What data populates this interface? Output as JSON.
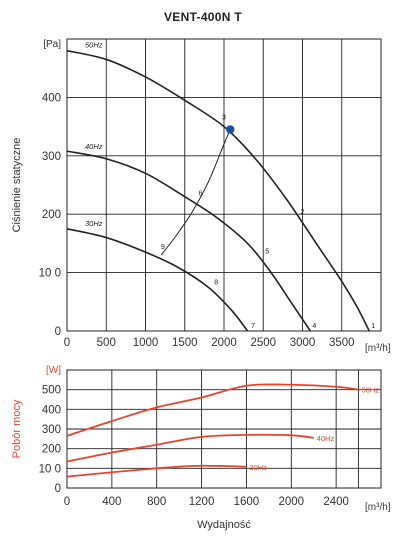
{
  "colors": {
    "pressure_curve": "#222222",
    "power_curve": "#e8442a",
    "operating_point": "#1a4fa0"
  },
  "chart_data": [
    {
      "type": "line",
      "title": "VENT-400N T",
      "ylabel": "Ciśnienie statyczne",
      "yunit": "[Pa]",
      "xunit": "[m³/h]",
      "xlim": [
        0,
        4000
      ],
      "ylim": [
        0,
        500
      ],
      "xticks": [
        "0",
        "500",
        "1000",
        "1500",
        "2000",
        "2500",
        "3000",
        "3500"
      ],
      "yticks": [
        "0",
        "10 0",
        "200",
        "300",
        "400"
      ],
      "grid": true,
      "series": [
        {
          "name": "50Hz",
          "x": [
            0,
            500,
            1000,
            1500,
            2000,
            2400,
            2800,
            3200,
            3500,
            3700,
            3850
          ],
          "y": [
            480,
            465,
            435,
            395,
            350,
            295,
            225,
            145,
            85,
            40,
            0
          ]
        },
        {
          "name": "40Hz",
          "x": [
            0,
            500,
            1000,
            1500,
            1900,
            2300,
            2600,
            2850,
            3100
          ],
          "y": [
            308,
            295,
            270,
            230,
            195,
            150,
            100,
            50,
            0
          ]
        },
        {
          "name": "30Hz",
          "x": [
            0,
            500,
            1000,
            1400,
            1800,
            2100,
            2300
          ],
          "y": [
            175,
            160,
            135,
            110,
            75,
            35,
            0
          ]
        }
      ],
      "system_curve": {
        "x": [
          1200,
          1400,
          1600,
          1800,
          2000,
          2080
        ],
        "y": [
          130,
          165,
          205,
          255,
          320,
          345
        ]
      },
      "operating_point": {
        "label": "3",
        "x": 2080,
        "y": 345
      },
      "point_labels": [
        {
          "label": "1",
          "x": 3900,
          "y": 5
        },
        {
          "label": "2",
          "x": 3000,
          "y": 200
        },
        {
          "label": "3",
          "x": 2000,
          "y": 362
        },
        {
          "label": "4",
          "x": 3150,
          "y": 5
        },
        {
          "label": "5",
          "x": 2550,
          "y": 133
        },
        {
          "label": "6",
          "x": 1700,
          "y": 232
        },
        {
          "label": "7",
          "x": 2370,
          "y": 5
        },
        {
          "label": "8",
          "x": 1900,
          "y": 80
        },
        {
          "label": "9",
          "x": 1220,
          "y": 140
        }
      ]
    },
    {
      "type": "line",
      "xlabel": "Wydajność",
      "ylabel": "Pobór mocy",
      "yunit": "[W]",
      "xunit": "[m³/h]",
      "xlim": [
        0,
        2800
      ],
      "ylim": [
        0,
        600
      ],
      "xticks": [
        "0",
        "400",
        "800",
        "1200",
        "1600",
        "2000",
        "2400"
      ],
      "yticks": [
        "0",
        "10 0",
        "200",
        "300",
        "400",
        "500"
      ],
      "grid": true,
      "series": [
        {
          "name": "50Hz",
          "x": [
            0,
            400,
            800,
            1200,
            1600,
            2000,
            2400,
            2600
          ],
          "y": [
            265,
            340,
            410,
            460,
            520,
            525,
            515,
            500
          ]
        },
        {
          "name": "40Hz",
          "x": [
            0,
            400,
            800,
            1200,
            1600,
            2000,
            2200
          ],
          "y": [
            135,
            180,
            220,
            260,
            270,
            268,
            255
          ]
        },
        {
          "name": "30Hz",
          "x": [
            0,
            400,
            800,
            1100,
            1400,
            1600
          ],
          "y": [
            58,
            80,
            100,
            112,
            112,
            108
          ]
        }
      ]
    }
  ]
}
